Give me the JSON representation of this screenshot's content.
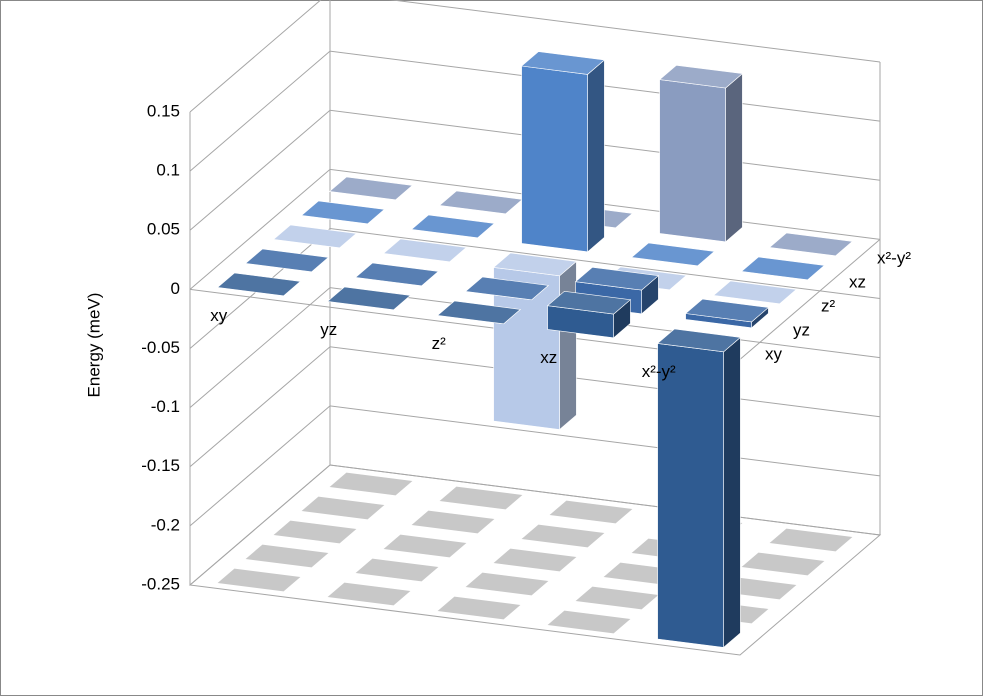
{
  "chart_data": {
    "type": "bar3d",
    "zlabel": "Energy (meV)",
    "categories": [
      "xy",
      "yz",
      "z²",
      "xz",
      "x²-y²"
    ],
    "series": [
      {
        "name": "xy",
        "color": "#2f5b91",
        "values": [
          0,
          0,
          0,
          0.02,
          -0.25
        ]
      },
      {
        "name": "yz",
        "color": "#3b68a6",
        "values": [
          0,
          0,
          0,
          0.02,
          0.005
        ]
      },
      {
        "name": "z²",
        "color": "#b7c9e8",
        "values": [
          0,
          0,
          -0.13,
          0,
          0
        ]
      },
      {
        "name": "xz",
        "color": "#4f84c9",
        "values": [
          0,
          0,
          0.15,
          0,
          0
        ]
      },
      {
        "name": "x²-y²",
        "color": "#8a9cc0",
        "values": [
          0,
          0,
          0,
          0.13,
          0
        ]
      }
    ],
    "ylim": [
      -0.25,
      0.15
    ],
    "yticks": [
      -0.25,
      -0.2,
      -0.15,
      -0.1,
      -0.05,
      0,
      0.05,
      0.1,
      0.15
    ],
    "grid": true
  }
}
